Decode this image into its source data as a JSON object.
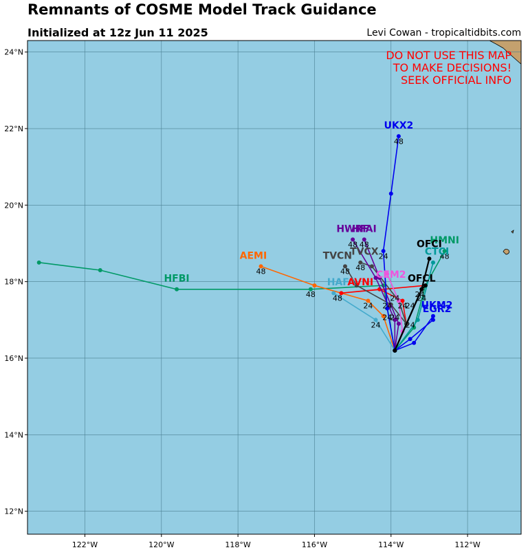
{
  "header": {
    "title": "Remnants of COSME Model Track Guidance",
    "subtitle": "Initialized at 12z Jun 11 2025",
    "credit": "Levi Cowan - tropicaltidbits.com"
  },
  "warning": [
    "DO NOT USE THIS MAP",
    "TO MAKE DECISIONS!",
    "SEEK OFFICIAL INFO"
  ],
  "colors": {
    "ocean": "#94cde3",
    "land": "#c4a16e",
    "grid": "#4a7f92",
    "warning": "#ff0000"
  },
  "chart_data": {
    "type": "map",
    "lon_range": [
      -123.5,
      -110.6
    ],
    "lat_range": [
      11.4,
      24.3
    ],
    "grid": true,
    "lon_ticks": [
      {
        "v": -122,
        "label": "122°W"
      },
      {
        "v": -120,
        "label": "120°W"
      },
      {
        "v": -118,
        "label": "118°W"
      },
      {
        "v": -116,
        "label": "116°W"
      },
      {
        "v": -114,
        "label": "114°W"
      },
      {
        "v": -112,
        "label": "112°W"
      }
    ],
    "lat_ticks": [
      {
        "v": 12,
        "label": "12°N"
      },
      {
        "v": 14,
        "label": "14°N"
      },
      {
        "v": 16,
        "label": "16°N"
      },
      {
        "v": 18,
        "label": "18°N"
      },
      {
        "v": 20,
        "label": "20°N"
      },
      {
        "v": 22,
        "label": "22°N"
      },
      {
        "v": 24,
        "label": "24°N"
      }
    ],
    "tracks": [
      {
        "name": "HFBI",
        "color": "#009966",
        "points": [
          [
            -113.9,
            16.2
          ],
          [
            -114.2,
            17.9
          ],
          [
            -116.1,
            17.8
          ],
          [
            -119.6,
            17.8
          ],
          [
            -121.6,
            18.3
          ],
          [
            -123.2,
            18.5
          ]
        ],
        "name_at": [
          -119.6,
          18.0
        ]
      },
      {
        "name": "AEMI",
        "color": "#ff6600",
        "points": [
          [
            -113.9,
            16.2
          ],
          [
            -114.2,
            17.1
          ],
          [
            -114.6,
            17.5
          ],
          [
            -116.0,
            17.9
          ],
          [
            -117.4,
            18.4
          ]
        ],
        "name_at": [
          -117.6,
          18.6
        ]
      },
      {
        "name": "HAFA",
        "color": "#44aacc",
        "points": [
          [
            -113.9,
            16.2
          ],
          [
            -114.4,
            17.0
          ],
          [
            -115.5,
            17.7
          ]
        ],
        "name_at": [
          -115.3,
          17.9
        ]
      },
      {
        "name": "AVNI",
        "color": "#ff0000",
        "points": [
          [
            -113.9,
            16.2
          ],
          [
            -113.6,
            16.9
          ],
          [
            -113.7,
            17.5
          ],
          [
            -114.3,
            17.8
          ],
          [
            -115.3,
            17.7
          ],
          [
            -113.1,
            17.9
          ]
        ],
        "name_at": [
          -114.8,
          17.9
        ]
      },
      {
        "name": "TVCN",
        "color": "#444444",
        "points": [
          [
            -113.9,
            16.2
          ],
          [
            -113.6,
            16.9
          ],
          [
            -114.0,
            17.4
          ],
          [
            -114.9,
            17.9
          ],
          [
            -115.2,
            18.4
          ]
        ],
        "name_at": [
          -115.4,
          18.6
        ]
      },
      {
        "name": "TVCX",
        "color": "#444444",
        "points": [
          [
            -113.9,
            16.2
          ],
          [
            -113.6,
            16.9
          ],
          [
            -113.8,
            17.5
          ],
          [
            -114.5,
            18.4
          ],
          [
            -114.8,
            18.5
          ]
        ],
        "name_at": [
          -114.7,
          18.7
        ]
      },
      {
        "name": "HWRF",
        "color": "#660099",
        "points": [
          [
            -113.9,
            16.2
          ],
          [
            -113.9,
            17.0
          ],
          [
            -114.4,
            18.1
          ],
          [
            -115.0,
            19.1
          ]
        ],
        "name_at": [
          -115.0,
          19.3
        ]
      },
      {
        "name": "HFAI",
        "color": "#660099",
        "points": [
          [
            -113.9,
            16.2
          ],
          [
            -113.8,
            16.9
          ],
          [
            -114.3,
            18.1
          ],
          [
            -114.7,
            19.1
          ]
        ],
        "name_at": [
          -114.7,
          19.3
        ]
      },
      {
        "name": "CEM2",
        "color": "#ee55dd",
        "points": [
          [
            -113.9,
            16.2
          ],
          [
            -113.7,
            16.7
          ],
          [
            -113.8,
            17.5
          ],
          [
            -114.1,
            18.2
          ]
        ],
        "name_at": [
          -114.0,
          18.1
        ]
      },
      {
        "name": "UKX2",
        "color": "#0000ee",
        "points": [
          [
            -113.9,
            16.2
          ],
          [
            -114.1,
            17.3
          ],
          [
            -114.2,
            18.8
          ],
          [
            -114.0,
            20.3
          ],
          [
            -113.8,
            21.8
          ]
        ],
        "name_at": [
          -113.8,
          22.0
        ]
      },
      {
        "name": "UKM2",
        "color": "#0000ee",
        "points": [
          [
            -113.9,
            16.2
          ],
          [
            -113.4,
            16.4
          ],
          [
            -112.9,
            17.1
          ]
        ],
        "name_at": [
          -112.8,
          17.3
        ]
      },
      {
        "name": "EGR2",
        "color": "#0000ee",
        "points": [
          [
            -113.9,
            16.2
          ],
          [
            -113.5,
            16.5
          ],
          [
            -112.9,
            17.0
          ]
        ],
        "name_at": [
          -112.8,
          17.2
        ]
      },
      {
        "name": "HMNI",
        "color": "#009966",
        "points": [
          [
            -113.9,
            16.2
          ],
          [
            -113.4,
            16.8
          ],
          [
            -113.1,
            17.9
          ],
          [
            -112.6,
            18.8
          ]
        ],
        "name_at": [
          -112.6,
          19.0
        ]
      },
      {
        "name": "CTCI",
        "color": "#009999",
        "points": [
          [
            -113.9,
            16.2
          ],
          [
            -113.3,
            17.0
          ],
          [
            -112.9,
            18.5
          ]
        ],
        "name_at": [
          -112.8,
          18.7
        ]
      },
      {
        "name": "OFCI",
        "color": "#000000",
        "points": [
          [
            -113.9,
            16.2
          ],
          [
            -113.2,
            17.8
          ],
          [
            -113.0,
            18.6
          ]
        ],
        "name_at": [
          -113.0,
          18.9
        ]
      },
      {
        "name": "OFCL",
        "color": "#000000",
        "points": [
          [
            -113.9,
            16.2
          ],
          [
            -113.2,
            17.8
          ],
          [
            -113.1,
            17.9
          ]
        ],
        "name_at": [
          -113.2,
          18.0
        ]
      }
    ],
    "hour_labels": [
      {
        "text": "48",
        "at": [
          -113.8,
          21.6
        ]
      },
      {
        "text": "48",
        "at": [
          -115.0,
          18.9
        ]
      },
      {
        "text": "48",
        "at": [
          -114.7,
          18.9
        ]
      },
      {
        "text": "24",
        "at": [
          -114.2,
          18.6
        ]
      },
      {
        "text": "48",
        "at": [
          -115.2,
          18.2
        ]
      },
      {
        "text": "48",
        "at": [
          -114.8,
          18.3
        ]
      },
      {
        "text": "48",
        "at": [
          -117.4,
          18.2
        ]
      },
      {
        "text": "48",
        "at": [
          -116.1,
          17.6
        ]
      },
      {
        "text": "48",
        "at": [
          -115.4,
          17.5
        ]
      },
      {
        "text": "24",
        "at": [
          -114.6,
          17.3
        ]
      },
      {
        "text": "24",
        "at": [
          -114.4,
          16.8
        ]
      },
      {
        "text": "24",
        "at": [
          -114.1,
          17.3
        ]
      },
      {
        "text": "24",
        "at": [
          -113.9,
          17.5
        ]
      },
      {
        "text": "24",
        "at": [
          -113.7,
          17.3
        ]
      },
      {
        "text": "24",
        "at": [
          -113.5,
          17.3
        ]
      },
      {
        "text": "24",
        "at": [
          -113.5,
          16.8
        ]
      },
      {
        "text": "24",
        "at": [
          -114.1,
          17.0
        ]
      },
      {
        "text": "24",
        "at": [
          -113.9,
          17.0
        ]
      },
      {
        "text": "24",
        "at": [
          -113.2,
          17.5
        ]
      },
      {
        "text": "48",
        "at": [
          -112.6,
          18.6
        ]
      },
      {
        "text": "24",
        "at": [
          -113.25,
          17.6
        ]
      }
    ]
  }
}
